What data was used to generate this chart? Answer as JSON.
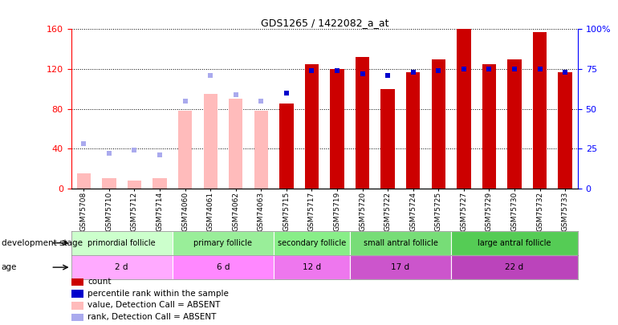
{
  "title": "GDS1265 / 1422082_a_at",
  "samples": [
    "GSM75708",
    "GSM75710",
    "GSM75712",
    "GSM75714",
    "GSM74060",
    "GSM74061",
    "GSM74062",
    "GSM74063",
    "GSM75715",
    "GSM75717",
    "GSM75719",
    "GSM75720",
    "GSM75722",
    "GSM75724",
    "GSM75725",
    "GSM75727",
    "GSM75729",
    "GSM75730",
    "GSM75732",
    "GSM75733"
  ],
  "bar_values": [
    15,
    10,
    8,
    10,
    78,
    95,
    90,
    78,
    85,
    125,
    120,
    132,
    100,
    117,
    130,
    160,
    125,
    130,
    157,
    117
  ],
  "pct_values": [
    28,
    22,
    24,
    21,
    55,
    71,
    59,
    55,
    60,
    74,
    74,
    72,
    71,
    73,
    74,
    75,
    75,
    75,
    75,
    73
  ],
  "is_absent": [
    true,
    true,
    true,
    true,
    true,
    true,
    true,
    true,
    false,
    false,
    false,
    false,
    false,
    false,
    false,
    false,
    false,
    false,
    false,
    false
  ],
  "groups": [
    {
      "label": "primordial follicle",
      "start": 0,
      "end": 4
    },
    {
      "label": "primary follicle",
      "start": 4,
      "end": 8
    },
    {
      "label": "secondary follicle",
      "start": 8,
      "end": 11
    },
    {
      "label": "small antral follicle",
      "start": 11,
      "end": 15
    },
    {
      "label": "large antral follicle",
      "start": 15,
      "end": 20
    }
  ],
  "group_colors": [
    "#ccffcc",
    "#99ee99",
    "#88ee88",
    "#77dd77",
    "#55cc55"
  ],
  "ages": [
    {
      "label": "2 d",
      "start": 0,
      "end": 4
    },
    {
      "label": "6 d",
      "start": 4,
      "end": 8
    },
    {
      "label": "12 d",
      "start": 8,
      "end": 11
    },
    {
      "label": "17 d",
      "start": 11,
      "end": 15
    },
    {
      "label": "22 d",
      "start": 15,
      "end": 20
    }
  ],
  "age_colors": [
    "#ffaaff",
    "#ff88ff",
    "#ee77ee",
    "#cc55cc",
    "#bb44bb"
  ],
  "ylim_left": [
    0,
    160
  ],
  "yticks_left": [
    0,
    40,
    80,
    120,
    160
  ],
  "yticks_right": [
    0,
    25,
    50,
    75,
    100
  ],
  "bar_color_present": "#cc0000",
  "bar_color_absent": "#ffbbbb",
  "dot_color_present": "#0000cc",
  "dot_color_absent": "#aaaaee",
  "bar_width": 0.55,
  "title_fontsize": 9
}
